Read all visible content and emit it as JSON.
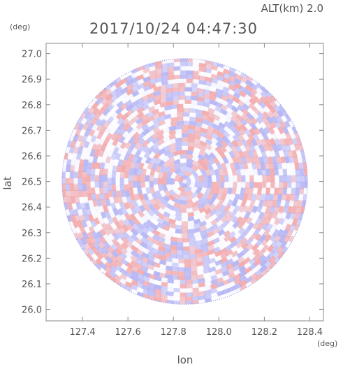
{
  "header": {
    "altitude_label": "ALT(km) 2.0",
    "timestamp": "2017/10/24 04:47:30"
  },
  "chart_data": {
    "type": "heatmap",
    "title": "2017/10/24 04:47:30",
    "annotation": "ALT(km) 2.0",
    "xlabel": "lon",
    "ylabel": "lat",
    "x_unit": "(deg)",
    "y_unit": "(deg)",
    "xlim": [
      127.24,
      128.46
    ],
    "ylim": [
      25.955,
      27.04
    ],
    "x_ticks": [
      "127.4",
      "127.6",
      "127.8",
      "128.0",
      "128.2",
      "128.4"
    ],
    "y_ticks": [
      "27.0",
      "26.9",
      "26.8",
      "26.7",
      "26.6",
      "26.5",
      "26.4",
      "26.3",
      "26.2",
      "26.1",
      "26.0"
    ],
    "x_tick_values": [
      127.4,
      127.6,
      127.8,
      128.0,
      128.2,
      128.4
    ],
    "y_tick_values": [
      27.0,
      26.9,
      26.8,
      26.7,
      26.6,
      26.5,
      26.4,
      26.3,
      26.2,
      26.1,
      26.0
    ],
    "radar_center": {
      "lon": 127.85,
      "lat": 26.5
    },
    "radar_range_deg": 0.54,
    "colors": {
      "positive": "#f4a9a9",
      "negative": "#b4b4f4",
      "zero": "#ffffff",
      "frame": "#888888"
    },
    "grid": false
  }
}
